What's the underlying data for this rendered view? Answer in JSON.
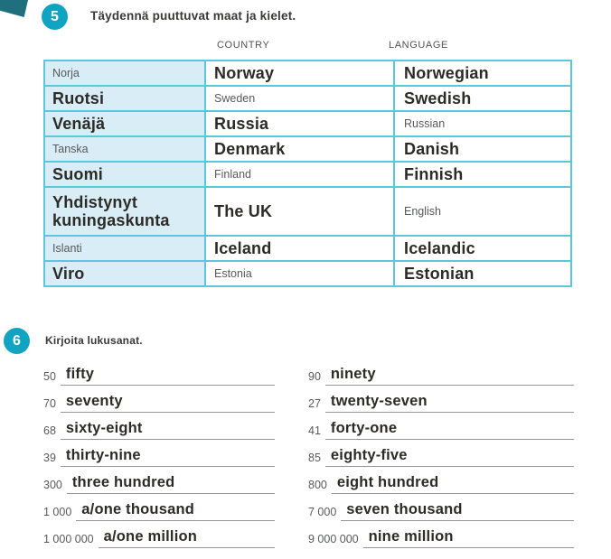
{
  "page": {
    "background": "#ffffff",
    "accent_teal": "#11a3c2",
    "corner_teal": "#1f6f7e",
    "table_border": "#5cc6dd",
    "cell_fill": "#d8edf5",
    "text_dark": "#2d2b28",
    "text_grey": "#58595b",
    "line_grey": "#969696"
  },
  "exercise5": {
    "badge": "5",
    "title": "Täydennä puuttuvat maat ja kielet.",
    "headers": {
      "country": "COUNTRY",
      "language": "LANGUAGE"
    },
    "rows": [
      {
        "fi": "Norja",
        "country": "Norway",
        "language": "Norwegian",
        "filled": "fi"
      },
      {
        "fi": "Ruotsi",
        "country": "Sweden",
        "language": "Swedish",
        "filled": "country"
      },
      {
        "fi": "Venäjä",
        "country": "Russia",
        "language": "Russian",
        "filled": "language"
      },
      {
        "fi": "Tanska",
        "country": "Denmark",
        "language": "Danish",
        "filled": "fi"
      },
      {
        "fi": "Suomi",
        "country": "Finland",
        "language": "Finnish",
        "filled": "country"
      },
      {
        "fi": "Yhdistynyt kuningaskunta",
        "country": "The UK",
        "language": "English",
        "filled": "language"
      },
      {
        "fi": "Islanti",
        "country": "Iceland",
        "language": "Icelandic",
        "filled": "fi"
      },
      {
        "fi": "Viro",
        "country": "Estonia",
        "language": "Estonian",
        "filled": "country"
      }
    ]
  },
  "exercise6": {
    "badge": "6",
    "title": "Kirjoita lukusanat.",
    "left": [
      {
        "num": "50",
        "word": "fifty"
      },
      {
        "num": "70",
        "word": "seventy"
      },
      {
        "num": "68",
        "word": "sixty-eight"
      },
      {
        "num": "39",
        "word": "thirty-nine"
      },
      {
        "num": "300",
        "word": "three hundred"
      },
      {
        "num": "1 000",
        "word": "a/one thousand"
      },
      {
        "num": "1 000 000",
        "word": "a/one million"
      }
    ],
    "right": [
      {
        "num": "90",
        "word": "ninety"
      },
      {
        "num": "27",
        "word": "twenty-seven"
      },
      {
        "num": "41",
        "word": "forty-one"
      },
      {
        "num": "85",
        "word": "eighty-five"
      },
      {
        "num": "800",
        "word": "eight hundred"
      },
      {
        "num": "7 000",
        "word": "seven thousand"
      },
      {
        "num": "9 000 000",
        "word": "nine million"
      }
    ]
  }
}
